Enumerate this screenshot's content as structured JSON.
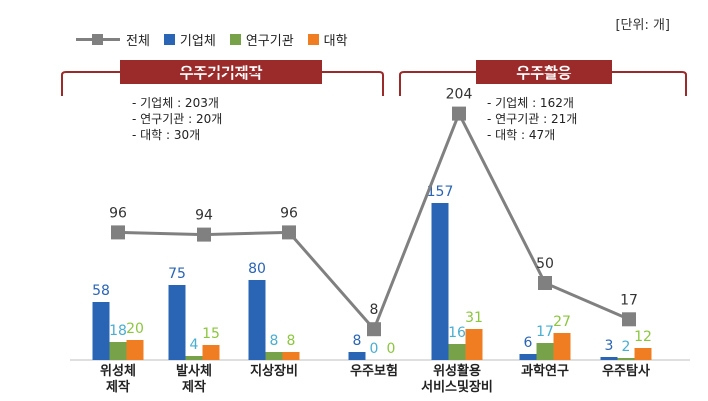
{
  "unit_label": "[단위: 개]",
  "legend": {
    "total": "전체",
    "company": "기업체",
    "institute": "연구기관",
    "university": "대학"
  },
  "groups": [
    {
      "title": "우주기기제작",
      "notes": [
        "- 기업체 : 203개",
        "- 연구기관 : 20개",
        "- 대학 : 30개"
      ]
    },
    {
      "title": "우주활용",
      "notes": [
        "- 기업체 : 162개",
        "- 연구기관 : 21개",
        "- 대학 : 47개"
      ]
    }
  ],
  "colors": {
    "total": "#808080",
    "company": "#2a64b4",
    "institute": "#77a24a",
    "university": "#f07d22",
    "company_label": "#2a64b4",
    "institute_label": "#4aaed0",
    "university_label": "#8cc63f",
    "banner": "#9b2b2b"
  },
  "chart_data": {
    "type": "bar",
    "categories": [
      "위성체\n제작",
      "발사체\n제작",
      "지상장비",
      "우주보험",
      "위성활용\n서비스및장비",
      "과학연구",
      "우주탐사"
    ],
    "series": [
      {
        "name": "기업체",
        "values": [
          58,
          75,
          80,
          8,
          157,
          6,
          3
        ]
      },
      {
        "name": "연구기관",
        "values": [
          18,
          4,
          8,
          0,
          16,
          17,
          2
        ]
      },
      {
        "name": "대학",
        "values": [
          20,
          15,
          8,
          0,
          31,
          27,
          12
        ]
      },
      {
        "name": "전체",
        "values": [
          96,
          94,
          96,
          8,
          204,
          50,
          17
        ],
        "chart_type": "line"
      }
    ],
    "legend_position": "top-left",
    "grid": false
  }
}
